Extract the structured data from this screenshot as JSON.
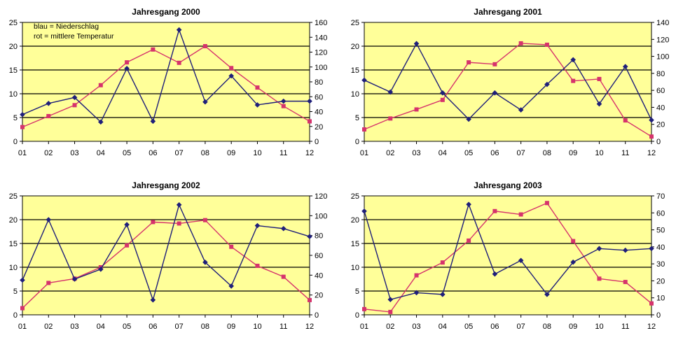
{
  "colors": {
    "plot_bg": "#ffff99",
    "grid": "#000000",
    "series_blue": "#1f1f7a",
    "series_red": "#d6336c"
  },
  "chart_data": [
    {
      "type": "line",
      "title": "Jahresgang 2000",
      "annotations": [
        "blau = Niederschlag",
        "rot = mittlere Temperatur"
      ],
      "categories": [
        "01",
        "02",
        "03",
        "04",
        "05",
        "06",
        "07",
        "08",
        "09",
        "10",
        "11",
        "12"
      ],
      "ylim_left": [
        0,
        25
      ],
      "yticks_left": [
        0,
        5,
        10,
        15,
        20,
        25
      ],
      "ylim_right": [
        0,
        160
      ],
      "yticks_right": [
        0,
        20,
        40,
        60,
        80,
        100,
        120,
        140,
        160
      ],
      "series": [
        {
          "axis": "right",
          "color": "blue",
          "values": [
            36,
            51,
            59,
            26,
            98,
            27,
            150,
            53,
            88,
            49,
            54,
            54
          ]
        },
        {
          "axis": "left",
          "color": "red",
          "values": [
            3.0,
            5.3,
            7.6,
            11.8,
            16.6,
            19.3,
            16.5,
            20.0,
            15.4,
            11.3,
            7.4,
            4.2
          ]
        }
      ]
    },
    {
      "type": "line",
      "title": "Jahresgang 2001",
      "annotations": [],
      "categories": [
        "01",
        "02",
        "03",
        "04",
        "05",
        "06",
        "07",
        "08",
        "09",
        "10",
        "11",
        "12"
      ],
      "ylim_left": [
        0,
        25
      ],
      "yticks_left": [
        0,
        5,
        10,
        15,
        20,
        25
      ],
      "ylim_right": [
        0,
        140
      ],
      "yticks_right": [
        0,
        20,
        40,
        60,
        80,
        100,
        120,
        140
      ],
      "series": [
        {
          "axis": "right",
          "color": "blue",
          "values": [
            72,
            58,
            115,
            57,
            26,
            57,
            37,
            67,
            96,
            44,
            88,
            25
          ]
        },
        {
          "axis": "left",
          "color": "red",
          "values": [
            2.5,
            4.8,
            6.7,
            8.7,
            16.6,
            16.2,
            20.6,
            20.3,
            12.7,
            13.1,
            4.4,
            1.0
          ]
        }
      ]
    },
    {
      "type": "line",
      "title": "Jahresgang 2002",
      "annotations": [],
      "categories": [
        "01",
        "02",
        "03",
        "04",
        "05",
        "06",
        "07",
        "08",
        "09",
        "10",
        "11",
        "12"
      ],
      "ylim_left": [
        0,
        25
      ],
      "yticks_left": [
        0,
        5,
        10,
        15,
        20,
        25
      ],
      "ylim_right": [
        0,
        120
      ],
      "yticks_right": [
        0,
        20,
        40,
        60,
        80,
        100,
        120
      ],
      "series": [
        {
          "axis": "right",
          "color": "blue",
          "values": [
            35,
            96,
            36,
            46,
            91,
            15,
            111,
            53,
            29,
            90,
            87,
            79
          ]
        },
        {
          "axis": "left",
          "color": "red",
          "values": [
            1.4,
            6.7,
            7.6,
            10.0,
            14.6,
            19.5,
            19.2,
            19.9,
            14.3,
            10.3,
            8.0,
            3.1
          ]
        }
      ]
    },
    {
      "type": "line",
      "title": "Jahresgang 2003",
      "annotations": [],
      "categories": [
        "01",
        "02",
        "03",
        "04",
        "05",
        "06",
        "07",
        "08",
        "09",
        "10",
        "11",
        "12"
      ],
      "ylim_left": [
        0,
        25
      ],
      "yticks_left": [
        0,
        5,
        10,
        15,
        20,
        25
      ],
      "ylim_right": [
        0,
        70
      ],
      "yticks_right": [
        0,
        10,
        20,
        30,
        40,
        50,
        60,
        70
      ],
      "series": [
        {
          "axis": "right",
          "color": "blue",
          "values": [
            61,
            9,
            13,
            12,
            65,
            24,
            32,
            12,
            31,
            39,
            38,
            39
          ]
        },
        {
          "axis": "left",
          "color": "red",
          "values": [
            1.2,
            0.6,
            8.3,
            11.0,
            15.6,
            21.8,
            21.1,
            23.5,
            15.5,
            7.6,
            6.9,
            2.4
          ]
        }
      ]
    }
  ]
}
